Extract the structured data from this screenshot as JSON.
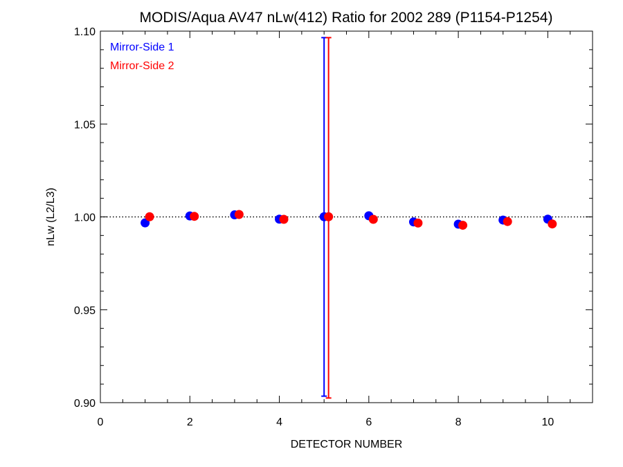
{
  "chart_data": {
    "type": "scatter",
    "title": "MODIS/Aqua AV47 nLw(412) Ratio for 2002 289 (P1154-P1254)",
    "xlabel": "DETECTOR NUMBER",
    "ylabel": "nLw (L2/L3)",
    "xlim": [
      0,
      11
    ],
    "ylim": [
      0.9,
      1.1
    ],
    "x_ticks": [
      0,
      2,
      4,
      6,
      8,
      10
    ],
    "x_tick_labels": [
      "0",
      "2",
      "4",
      "6",
      "8",
      "10"
    ],
    "y_ticks": [
      0.9,
      0.95,
      1.0,
      1.05,
      1.1
    ],
    "y_tick_labels": [
      "0.90",
      "0.95",
      "1.00",
      "1.05",
      "1.10"
    ],
    "reference_line": 1.0,
    "grid": false,
    "legend_position": "top-left",
    "series": [
      {
        "name": "Mirror-Side 1",
        "color": "#0000ff",
        "x": [
          1,
          2,
          3,
          4,
          5,
          6,
          7,
          8,
          9,
          10
        ],
        "values": [
          0.9968,
          1.0005,
          1.0011,
          0.9988,
          1.0001,
          1.0006,
          0.9973,
          0.9961,
          0.9983,
          0.9988
        ],
        "error_bars": [
          {
            "x": 5,
            "low": 0.9035,
            "high": 1.0965
          }
        ]
      },
      {
        "name": "Mirror-Side 2",
        "color": "#ff0000",
        "x": [
          1.1,
          2.1,
          3.1,
          4.1,
          5.1,
          6.1,
          7.1,
          8.1,
          9.1,
          10.1
        ],
        "values": [
          1.0001,
          1.0003,
          1.0013,
          0.9987,
          1.0001,
          0.9987,
          0.9967,
          0.9955,
          0.9975,
          0.9962
        ],
        "error_bars": [
          {
            "x": 5.1,
            "low": 0.9025,
            "high": 1.0965
          }
        ]
      }
    ]
  }
}
